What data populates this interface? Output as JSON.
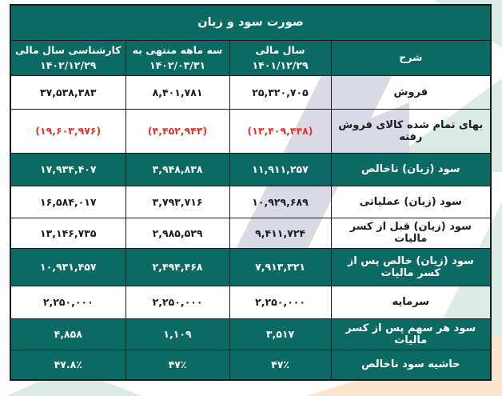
{
  "title": "صورت سود و زیان",
  "columns": [
    {
      "header": "شرح"
    },
    {
      "header": "سال مالی ۱۴۰۱/۱۲/۲۹"
    },
    {
      "header": "سه ماهه منتهی به ۱۴۰۲/۰۳/۳۱"
    },
    {
      "header": "کارشناسی سال مالی ۱۴۰۲/۱۲/۲۹"
    }
  ],
  "rows": [
    {
      "label": "فروش",
      "values": [
        "۲۵,۳۲۰,۷۰۵",
        "۸,۴۰۱,۷۸۱",
        "۳۷,۵۳۸,۳۸۳"
      ],
      "style": "normal"
    },
    {
      "label": "بهای تمام شده کالای فروش رفته",
      "values": [
        "(۱۳,۴۰۹,۴۴۸)",
        "(۴,۴۵۲,۹۴۳)",
        "(۱۹,۶۰۳,۹۷۶)"
      ],
      "style": "negative"
    },
    {
      "label": "سود (زیان) ناخالص",
      "values": [
        "۱۱,۹۱۱,۲۵۷",
        "۳,۹۴۸,۸۳۸",
        "۱۷,۹۳۴,۴۰۷"
      ],
      "style": "highlight"
    },
    {
      "label": "سود (زیان) عملیاتی",
      "values": [
        "۱۰,۹۲۹,۶۸۹",
        "۳,۷۹۳,۷۱۶",
        "۱۶,۵۸۴,۰۱۷"
      ],
      "style": "normal"
    },
    {
      "label": "سود (زیان) قبل از کسر مالیات",
      "values": [
        "۹,۴۱۱,۷۲۴",
        "۲,۹۸۵,۵۲۹",
        "۱۳,۱۴۶,۷۳۵"
      ],
      "style": "normal"
    },
    {
      "label": "سود (زیان) خالص پس از کسر مالیات",
      "values": [
        "۷,۹۱۳,۳۲۱",
        "۲,۴۹۴,۴۶۸",
        "۱۰,۹۳۱,۴۵۷"
      ],
      "style": "highlight"
    },
    {
      "label": "سرمایه",
      "values": [
        "۲,۲۵۰,۰۰۰",
        "۲,۲۵۰,۰۰۰",
        "۲,۲۵۰,۰۰۰"
      ],
      "style": "normal"
    },
    {
      "label": "سود هر سهم پس از کسر مالیات",
      "values": [
        "۳,۵۱۷",
        "۱,۱۰۹",
        "۴,۸۵۸"
      ],
      "style": "highlight"
    },
    {
      "label": "حاشیه سود ناخالص",
      "values": [
        "۴۷٪",
        "۴۷٪",
        "۴۷.۸٪"
      ],
      "style": "highlight"
    }
  ],
  "colors": {
    "header_teal": "#0b6a64",
    "highlight_row_teal": "#0b6a64",
    "negative_red": "#e8332d",
    "text_dark": "#1c1c1c",
    "border": "#1c1c1c",
    "watermark_lavender": "#dadae6",
    "watermark_mint": "#d9ebe4",
    "watermark_peach": "#fbe3cd"
  }
}
